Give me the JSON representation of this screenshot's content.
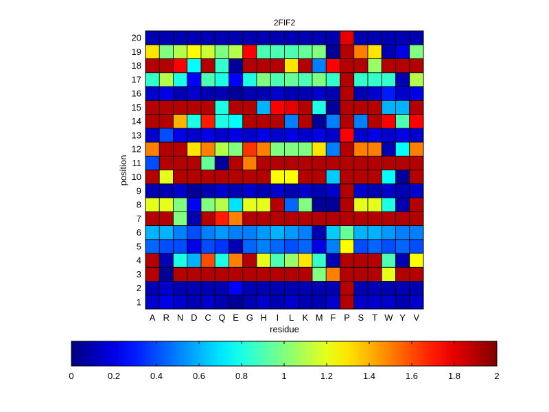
{
  "chart_data": {
    "type": "heatmap",
    "title": "2FIF2",
    "xlabel": "residue",
    "ylabel": "position",
    "x_categories": [
      "A",
      "R",
      "N",
      "D",
      "C",
      "Q",
      "E",
      "G",
      "H",
      "I",
      "L",
      "K",
      "M",
      "F",
      "P",
      "S",
      "T",
      "W",
      "Y",
      "V"
    ],
    "y_categories": [
      "1",
      "2",
      "3",
      "4",
      "5",
      "6",
      "7",
      "8",
      "9",
      "10",
      "11",
      "12",
      "13",
      "14",
      "15",
      "16",
      "17",
      "18",
      "19",
      "20"
    ],
    "colorscale": "jet",
    "clim": [
      0,
      2
    ],
    "colorbar_ticks": [
      "0",
      "0.2",
      "0.4",
      "0.6",
      "0.8",
      "1",
      "1.2",
      "1.4",
      "1.6",
      "1.8",
      "2"
    ],
    "grid": true,
    "values": [
      [
        0.15,
        0.2,
        0.15,
        0.1,
        0.15,
        0.1,
        0.05,
        0.1,
        0.15,
        0.1,
        0.15,
        0.1,
        0.1,
        0.15,
        1.9,
        0.15,
        0.15,
        0.15,
        0.1,
        0.15
      ],
      [
        0.1,
        0.15,
        0.1,
        0.1,
        0.1,
        0.1,
        0.25,
        0.1,
        0.1,
        0.1,
        0.1,
        0.1,
        0.1,
        0.1,
        1.9,
        0.1,
        0.1,
        0.1,
        0.1,
        0.1
      ],
      [
        1.9,
        0.05,
        1.9,
        1.9,
        1.9,
        1.9,
        1.9,
        1.9,
        1.9,
        1.9,
        1.9,
        1.9,
        1.0,
        1.5,
        1.9,
        1.9,
        1.9,
        1.2,
        1.9,
        1.9
      ],
      [
        1.9,
        0.1,
        0.8,
        0.6,
        1.6,
        0.8,
        1.5,
        1.9,
        1.2,
        0.9,
        1.05,
        1.3,
        0.85,
        0.1,
        1.9,
        1.9,
        1.9,
        0.9,
        0.1,
        1.25
      ],
      [
        0.45,
        0.4,
        0.4,
        0.2,
        0.4,
        0.35,
        0.1,
        0.45,
        0.5,
        0.45,
        0.4,
        0.45,
        0.2,
        0.5,
        1.25,
        0.4,
        0.45,
        0.4,
        0.45,
        0.4
      ],
      [
        0.6,
        0.6,
        0.5,
        0.4,
        0.5,
        0.55,
        0.5,
        0.5,
        0.55,
        0.6,
        0.55,
        0.5,
        0.1,
        0.65,
        0.95,
        0.6,
        0.6,
        0.55,
        0.5,
        0.5
      ],
      [
        1.9,
        1.9,
        1.0,
        0.1,
        1.9,
        1.7,
        1.5,
        1.9,
        1.9,
        1.9,
        1.9,
        1.9,
        1.9,
        1.9,
        1.9,
        1.9,
        1.9,
        1.9,
        1.9,
        1.9
      ],
      [
        1.2,
        1.2,
        1.0,
        0.25,
        1.0,
        1.1,
        0.7,
        1.2,
        1.2,
        1.9,
        0.45,
        1.0,
        0.05,
        0.05,
        1.9,
        1.2,
        1.2,
        0.8,
        0.1,
        1.9
      ],
      [
        0.1,
        0.1,
        0.15,
        0.05,
        0.1,
        0.15,
        0.1,
        0.15,
        0.1,
        0.15,
        0.1,
        0.15,
        0.1,
        0.15,
        1.9,
        0.15,
        0.1,
        0.15,
        0.1,
        0.15
      ],
      [
        1.9,
        1.2,
        1.9,
        1.9,
        1.9,
        1.9,
        1.9,
        1.9,
        1.9,
        1.25,
        1.25,
        1.9,
        1.9,
        0.65,
        1.9,
        1.9,
        1.9,
        0.75,
        0.05,
        1.9
      ],
      [
        0.4,
        1.9,
        1.9,
        1.9,
        0.95,
        0.05,
        1.9,
        1.5,
        1.9,
        1.9,
        1.9,
        1.9,
        1.9,
        1.9,
        1.9,
        1.9,
        1.9,
        1.9,
        1.9,
        1.9
      ],
      [
        1.5,
        1.9,
        1.9,
        1.3,
        1.5,
        1.1,
        1.0,
        1.65,
        1.5,
        1.0,
        1.0,
        1.0,
        1.3,
        0.5,
        1.9,
        1.5,
        1.5,
        0.1,
        0.75,
        1.5
      ],
      [
        0.15,
        0.4,
        0.2,
        0.15,
        0.2,
        0.15,
        0.2,
        0.15,
        0.2,
        0.15,
        0.2,
        0.15,
        0.2,
        0.15,
        1.75,
        0.15,
        0.2,
        0.15,
        0.2,
        0.15
      ],
      [
        1.9,
        1.9,
        1.4,
        0.8,
        1.7,
        0.8,
        0.75,
        1.9,
        1.9,
        1.9,
        0.5,
        1.9,
        0.05,
        0.5,
        1.9,
        0.5,
        1.9,
        1.75,
        0.9,
        1.75
      ],
      [
        1.9,
        1.9,
        1.9,
        1.9,
        1.9,
        0.8,
        1.9,
        1.9,
        0.6,
        1.75,
        1.8,
        1.9,
        0.8,
        0.05,
        1.9,
        1.9,
        1.9,
        0.6,
        0.6,
        1.9
      ],
      [
        0.15,
        0.2,
        0.1,
        0.15,
        0.1,
        0.1,
        0.05,
        0.1,
        0.1,
        0.15,
        0.1,
        0.1,
        0.15,
        0.1,
        1.9,
        0.1,
        0.15,
        0.3,
        0.15,
        0.2
      ],
      [
        0.85,
        1.1,
        0.8,
        0.25,
        0.9,
        0.8,
        0.25,
        0.8,
        1.0,
        0.9,
        0.95,
        0.9,
        1.0,
        0.85,
        1.9,
        0.85,
        0.85,
        0.85,
        0.1,
        1.1
      ],
      [
        1.9,
        1.9,
        1.75,
        0.75,
        1.9,
        0.85,
        0.05,
        1.9,
        1.9,
        1.9,
        1.3,
        1.9,
        0.5,
        1.75,
        1.9,
        1.9,
        1.05,
        1.9,
        1.9,
        1.9
      ],
      [
        1.3,
        1.0,
        1.1,
        1.25,
        1.15,
        1.0,
        1.1,
        1.75,
        0.9,
        0.9,
        0.9,
        0.95,
        1.0,
        0.05,
        1.9,
        1.5,
        1.3,
        0.1,
        0.2,
        1.0
      ],
      [
        0.1,
        0.1,
        0.1,
        0.1,
        0.1,
        0.1,
        0.1,
        0.1,
        0.1,
        0.1,
        0.1,
        0.1,
        0.1,
        0.1,
        1.8,
        0.1,
        0.1,
        0.1,
        0.1,
        0.1
      ]
    ]
  }
}
